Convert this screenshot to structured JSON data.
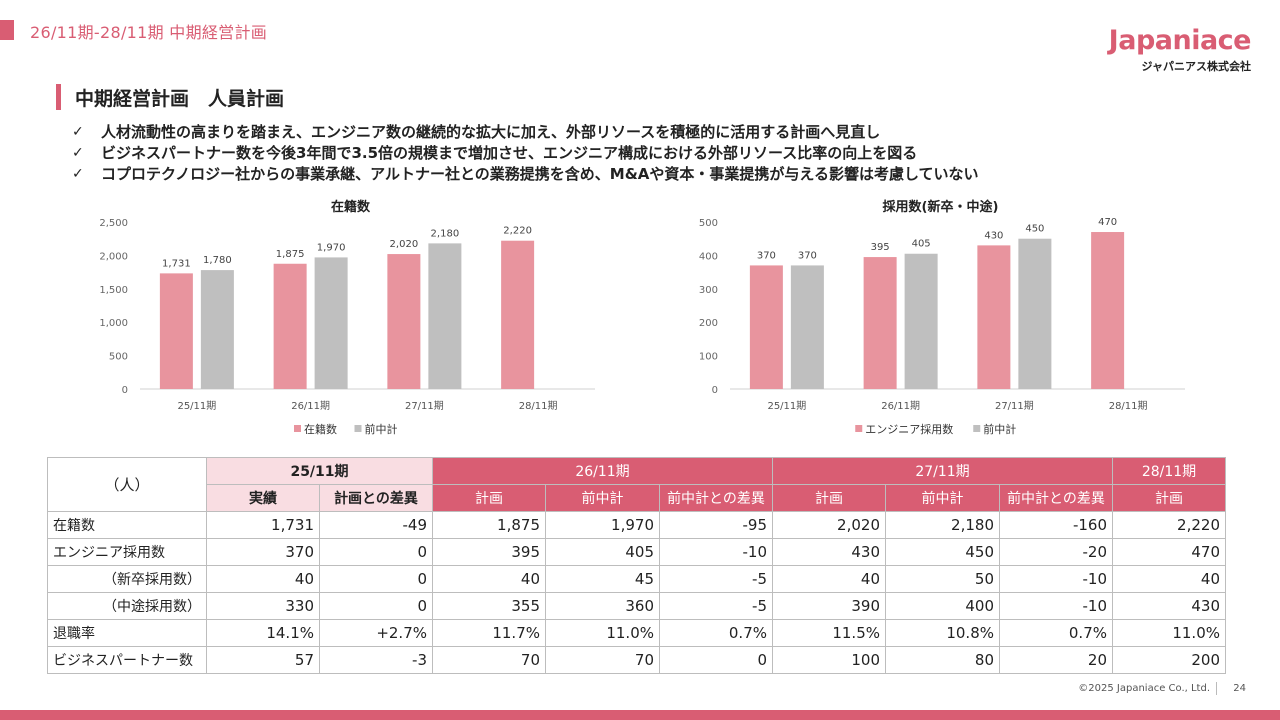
{
  "header": {
    "title": "26/11期-28/11期 中期経営計画"
  },
  "logo": {
    "word": "Japaniace",
    "sub": "ジャパニアス株式会社"
  },
  "section": {
    "title": "中期経営計画　人員計画"
  },
  "bullets": [
    "人材流動性の高まりを踏まえ、エンジニア数の継続的な拡大に加え、外部リソースを積極的に活用する計画へ見直し",
    "ビジネスパートナー数を今後3年間で3.5倍の規模まで増加させ、エンジニア構成における外部リソース比率の向上を図る",
    "コプロテクノロジー社からの事業承継、アルトナー社との業務提携を含め、M&Aや資本・事業提携が与える影響は考慮していない"
  ],
  "colors": {
    "accent": "#d95d73",
    "bar_primary": "#e8949e",
    "bar_secondary": "#bfbfbf"
  },
  "chart_data": [
    {
      "type": "bar",
      "title": "在籍数",
      "categories": [
        "25/11期",
        "26/11期",
        "27/11期",
        "28/11期"
      ],
      "series": [
        {
          "name": "在籍数",
          "values": [
            1731,
            1875,
            2020,
            2220
          ]
        },
        {
          "name": "前中計",
          "values": [
            1780,
            1970,
            2180,
            null
          ]
        }
      ],
      "ylim": [
        0,
        2500
      ],
      "yticks": [
        0,
        500,
        1000,
        1500,
        2000,
        2500
      ],
      "ytick_labels": [
        "0",
        "500",
        "1,000",
        "1,500",
        "2,000",
        "2,500"
      ],
      "grid": false,
      "legend": "bottom"
    },
    {
      "type": "bar",
      "title": "採用数(新卒・中途)",
      "categories": [
        "25/11期",
        "26/11期",
        "27/11期",
        "28/11期"
      ],
      "series": [
        {
          "name": "エンジニア採用数",
          "values": [
            370,
            395,
            430,
            470
          ]
        },
        {
          "name": "前中計",
          "values": [
            370,
            405,
            450,
            null
          ]
        }
      ],
      "ylim": [
        0,
        500
      ],
      "yticks": [
        0,
        100,
        200,
        300,
        400,
        500
      ],
      "ytick_labels": [
        "0",
        "100",
        "200",
        "300",
        "400",
        "500"
      ],
      "grid": false,
      "legend": "bottom"
    }
  ],
  "table": {
    "corner": "（人）",
    "periods": [
      "25/11期",
      "26/11期",
      "27/11期",
      "28/11期"
    ],
    "subheaders": [
      "実績",
      "計画との差異",
      "計画",
      "前中計",
      "前中計との差異",
      "計画",
      "前中計",
      "前中計との差異",
      "計画"
    ],
    "rows": [
      {
        "label": "在籍数",
        "values": [
          "1,731",
          "-49",
          "1,875",
          "1,970",
          "-95",
          "2,020",
          "2,180",
          "-160",
          "2,220"
        ]
      },
      {
        "label": "エンジニア採用数",
        "values": [
          "370",
          "0",
          "395",
          "405",
          "-10",
          "430",
          "450",
          "-20",
          "470"
        ]
      },
      {
        "label": "（新卒採用数）",
        "values": [
          "40",
          "0",
          "40",
          "45",
          "-5",
          "40",
          "50",
          "-10",
          "40"
        ]
      },
      {
        "label": "（中途採用数）",
        "values": [
          "330",
          "0",
          "355",
          "360",
          "-5",
          "390",
          "400",
          "-10",
          "430"
        ]
      },
      {
        "label": "退職率",
        "values": [
          "14.1%",
          "+2.7%",
          "11.7%",
          "11.0%",
          "0.7%",
          "11.5%",
          "10.8%",
          "0.7%",
          "11.0%"
        ]
      },
      {
        "label": "ビジネスパートナー数",
        "values": [
          "57",
          "-3",
          "70",
          "70",
          "0",
          "100",
          "80",
          "20",
          "200"
        ]
      }
    ]
  },
  "footer": {
    "copyright": "©2025 Japaniace Co., Ltd.",
    "page": "24"
  }
}
